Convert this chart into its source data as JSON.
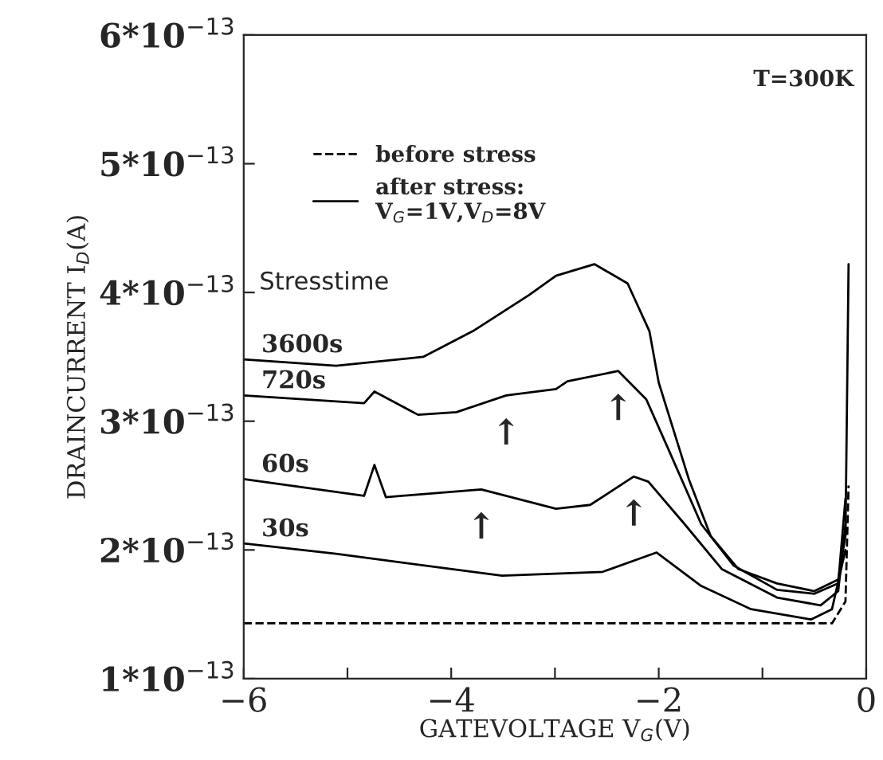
{
  "chart_data": {
    "type": "line",
    "xlabel": "GATEVOLTAGE V$_{G}$(V)",
    "ylabel": "DRAINCURRENT I$_{D}$(A)",
    "xlim": [
      -6,
      0
    ],
    "xticks": [
      -6,
      {
        "value": -5,
        "label": null
      },
      -4,
      {
        "value": -3,
        "label": null
      },
      -2,
      {
        "value": -1,
        "label": null
      },
      0
    ],
    "ylim": [
      1e-13,
      6e-13
    ],
    "yticks": [
      {
        "value": 1e-13,
        "label": "1*10$^{−13}$"
      },
      {
        "value": 2e-13,
        "label": "2*10$^{−13}$"
      },
      {
        "value": 3e-13,
        "label": "3*10$^{−13}$"
      },
      {
        "value": 4e-13,
        "label": "4*10$^{−13}$"
      },
      {
        "value": 5e-13,
        "label": "5*10$^{−13}$"
      },
      {
        "value": 6e-13,
        "label": "6*10$^{−13}$"
      }
    ],
    "grid": false,
    "legend": "top left",
    "series": [
      {
        "name": "before stress",
        "color": "#000000",
        "line_style": "dashed",
        "x": [
          -6,
          -5,
          -4,
          -3,
          -2,
          -1,
          -0.33,
          -0.2,
          -0.17
        ],
        "values": [
          1.43e-13,
          1.43e-13,
          1.43e-13,
          1.43e-13,
          1.43e-13,
          1.43e-13,
          1.43e-13,
          1.6e-13,
          2.5e-13
        ]
      },
      {
        "name": "3600s",
        "color": "#000000",
        "line_style": "solid",
        "x": [
          -6,
          -5.11,
          -4.27,
          -3.79,
          -3.25,
          -2.99,
          -2.62,
          -2.3,
          -2.09,
          -2.0,
          -1.71,
          -1.5,
          -1.23,
          -0.86,
          -0.5,
          -0.27,
          -0.2,
          -0.17
        ],
        "values": [
          3.48e-13,
          3.43e-13,
          3.5e-13,
          3.7e-13,
          3.98e-13,
          4.13e-13,
          4.22e-13,
          4.07e-13,
          3.7e-13,
          3.3e-13,
          2.55e-13,
          2.11e-13,
          1.85e-13,
          1.74e-13,
          1.68e-13,
          1.77e-13,
          2.11e-13,
          4.22e-13
        ]
      },
      {
        "name": "720s",
        "color": "#000000",
        "line_style": "solid",
        "x": [
          -6,
          -4.84,
          -4.74,
          -4.32,
          -3.95,
          -3.47,
          -2.99,
          -2.88,
          -2.39,
          -2.12,
          -1.9,
          -1.59,
          -1.28,
          -0.86,
          -0.5,
          -0.27,
          -0.2
        ],
        "values": [
          3.2e-13,
          3.14e-13,
          3.23e-13,
          3.05e-13,
          3.07e-13,
          3.2e-13,
          3.25e-13,
          3.31e-13,
          3.39e-13,
          3.17e-13,
          2.77e-13,
          2.2e-13,
          1.88e-13,
          1.69e-13,
          1.66e-13,
          1.74e-13,
          2.4e-13
        ]
      },
      {
        "name": "60s",
        "color": "#000000",
        "line_style": "solid",
        "x": [
          -6,
          -4.84,
          -4.74,
          -4.63,
          -3.71,
          -2.99,
          -2.66,
          -2.24,
          -2.1,
          -1.75,
          -1.39,
          -0.86,
          -0.44,
          -0.27,
          -0.2
        ],
        "values": [
          2.55e-13,
          2.42e-13,
          2.66e-13,
          2.41e-13,
          2.47e-13,
          2.32e-13,
          2.35e-13,
          2.57e-13,
          2.53e-13,
          2.2e-13,
          1.85e-13,
          1.63e-13,
          1.57e-13,
          1.68e-13,
          2.2e-13
        ]
      },
      {
        "name": "30s",
        "color": "#000000",
        "line_style": "solid",
        "x": [
          -6,
          -5.11,
          -3.51,
          -2.54,
          -2.02,
          -1.59,
          -1.11,
          -0.53,
          -0.33,
          -0.2
        ],
        "values": [
          2.05e-13,
          1.97e-13,
          1.8e-13,
          1.83e-13,
          1.98e-13,
          1.72e-13,
          1.54e-13,
          1.46e-13,
          1.54e-13,
          2e-13
        ]
      }
    ],
    "annotations": [
      "T=300K",
      "after stress:\nV$_{G}$=1V,V$_{D}$=8V",
      "Stresstime",
      {
        "text": "↑",
        "x": -3.47,
        "y": 3.2e-13
      },
      {
        "text": "↑",
        "x": -2.39,
        "y": 3.39e-13
      },
      {
        "text": "↑",
        "x": -3.71,
        "y": 2.47e-13
      },
      {
        "text": "↑",
        "x": -2.24,
        "y": 2.57e-13
      }
    ]
  }
}
